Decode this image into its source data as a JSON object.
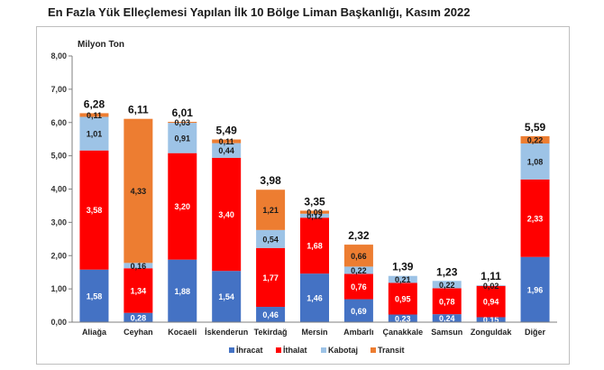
{
  "title": "En Fazla Yük Elleçlemesi Yapılan İlk 10 Bölge Liman Başkanlığı, Kasım 2022",
  "colors": {
    "ihracat": "#4472c4",
    "ithalat": "#ff0000",
    "kabotaj": "#9dc3e6",
    "transit": "#ed7d31"
  },
  "chart_data": {
    "type": "bar",
    "stacked": true,
    "ylabel": "Milyon Ton",
    "ylim": [
      0,
      8
    ],
    "yticks": [
      "0,00",
      "1,00",
      "2,00",
      "3,00",
      "4,00",
      "5,00",
      "6,00",
      "7,00",
      "8,00"
    ],
    "categories": [
      "Aliağa",
      "Ceyhan",
      "Kocaeli",
      "İskenderun",
      "Tekirdağ",
      "Mersin",
      "Ambarlı",
      "Çanakkale",
      "Samsun",
      "Zonguldak",
      "Diğer"
    ],
    "series": [
      {
        "name": "İhracat",
        "values": [
          1.58,
          0.28,
          1.88,
          1.54,
          0.46,
          1.46,
          0.69,
          0.23,
          0.24,
          0.15,
          1.96
        ],
        "labels": [
          "1,58",
          "0,28",
          "1,88",
          "1,54",
          "0,46",
          "1,46",
          "0,69",
          "0,23",
          "0,24",
          "0,15",
          "1,96"
        ]
      },
      {
        "name": "İthalat",
        "values": [
          3.58,
          1.34,
          3.2,
          3.4,
          1.77,
          1.68,
          0.76,
          0.95,
          0.78,
          0.94,
          2.33
        ],
        "labels": [
          "3,58",
          "1,34",
          "3,20",
          "3,40",
          "1,77",
          "1,68",
          "0,76",
          "0,95",
          "0,78",
          "0,94",
          "2,33"
        ]
      },
      {
        "name": "Kabotaj",
        "values": [
          1.01,
          0.16,
          0.91,
          0.44,
          0.54,
          0.12,
          0.22,
          0.21,
          0.22,
          0.02,
          1.08
        ],
        "labels": [
          "1,01",
          "0,16",
          "0,91",
          "0,44",
          "0,54",
          "0,12",
          "0,22",
          "0,21",
          "0,22",
          "0,02",
          "1,08"
        ]
      },
      {
        "name": "Transit",
        "values": [
          0.11,
          4.33,
          0.03,
          0.11,
          1.21,
          0.09,
          0.66,
          0.0,
          0.0,
          0.0,
          0.22
        ],
        "labels": [
          "0,11",
          "4,33",
          "0,03",
          "0,11",
          "1,21",
          "0,09",
          "0,66",
          "",
          "",
          "",
          "0,22"
        ]
      }
    ],
    "totals": [
      6.28,
      6.11,
      6.01,
      5.49,
      3.98,
      3.35,
      2.32,
      1.39,
      1.23,
      1.11,
      5.59
    ],
    "total_labels": [
      "6,28",
      "6,11",
      "6,01",
      "5,49",
      "3,98",
      "3,35",
      "2,32",
      "1,39",
      "1,23",
      "1,11",
      "5,59"
    ],
    "legend_position": "bottom"
  }
}
